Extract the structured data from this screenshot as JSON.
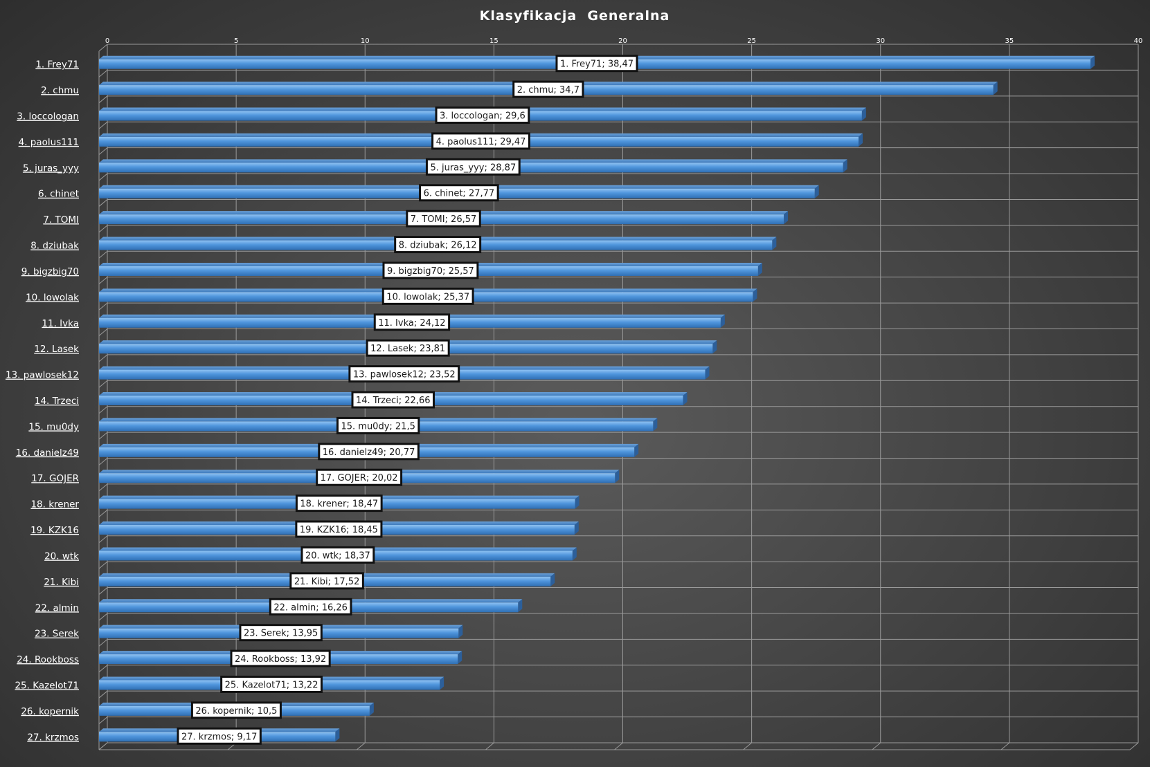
{
  "chart_data": {
    "type": "bar",
    "orientation": "horizontal",
    "title": "Klasyfikacja  Generalna",
    "xlim": [
      0,
      40
    ],
    "xticks": [
      "0",
      "5",
      "10",
      "15",
      "20",
      "25",
      "30",
      "35",
      "40"
    ],
    "grid": true,
    "bar_color": "#4a8fd6",
    "categories": [
      "1. Frey71",
      "2. chmu",
      "3. loccologan",
      "4. paolus111",
      "5. juras_yyy",
      "6. chinet",
      "7. TOMI",
      "8. dziubak",
      "9. bigzbig70",
      "10. lowolak",
      "11. Ivka",
      "12. Lasek",
      "13. pawlosek12",
      "14. Trzeci",
      "15. mu0dy",
      "16. danielz49",
      "17. GOJER",
      "18. krener",
      "19. KZK16",
      "20. wtk",
      "21. Kibi",
      "22. almin",
      "23. Serek",
      "24. Rookboss",
      "25. Kazelot71",
      "26. kopernik",
      "27. krzmos"
    ],
    "values": [
      38.47,
      34.7,
      29.6,
      29.47,
      28.87,
      27.77,
      26.57,
      26.12,
      25.57,
      25.37,
      24.12,
      23.81,
      23.52,
      22.66,
      21.5,
      20.77,
      20.02,
      18.47,
      18.45,
      18.37,
      17.52,
      16.26,
      13.95,
      13.92,
      13.22,
      10.5,
      9.17
    ],
    "data_labels": [
      "1. Frey71; 38,47",
      "2. chmu; 34,7",
      "3. loccologan; 29,6",
      "4. paolus111; 29,47",
      "5. juras_yyy; 28,87",
      "6. chinet; 27,77",
      "7. TOMI; 26,57",
      "8. dziubak; 26,12",
      "9. bigzbig70; 25,57",
      "10. lowolak; 25,37",
      "11. Ivka; 24,12",
      "12. Lasek; 23,81",
      "13. pawlosek12; 23,52",
      "14. Trzeci; 22,66",
      "15. mu0dy;  21,5",
      "16. danielz49; 20,77",
      "17. GOJER; 20,02",
      "18. krener; 18,47",
      "19. KZK16; 18,45",
      "20. wtk; 18,37",
      "21. Kibi; 17,52",
      "22. almin; 16,26",
      "23. Serek; 13,95",
      "24. Rookboss; 13,92",
      "25. Kazelot71; 13,22",
      "26. kopernik; 10,5",
      "27. krzmos; 9,17"
    ]
  }
}
